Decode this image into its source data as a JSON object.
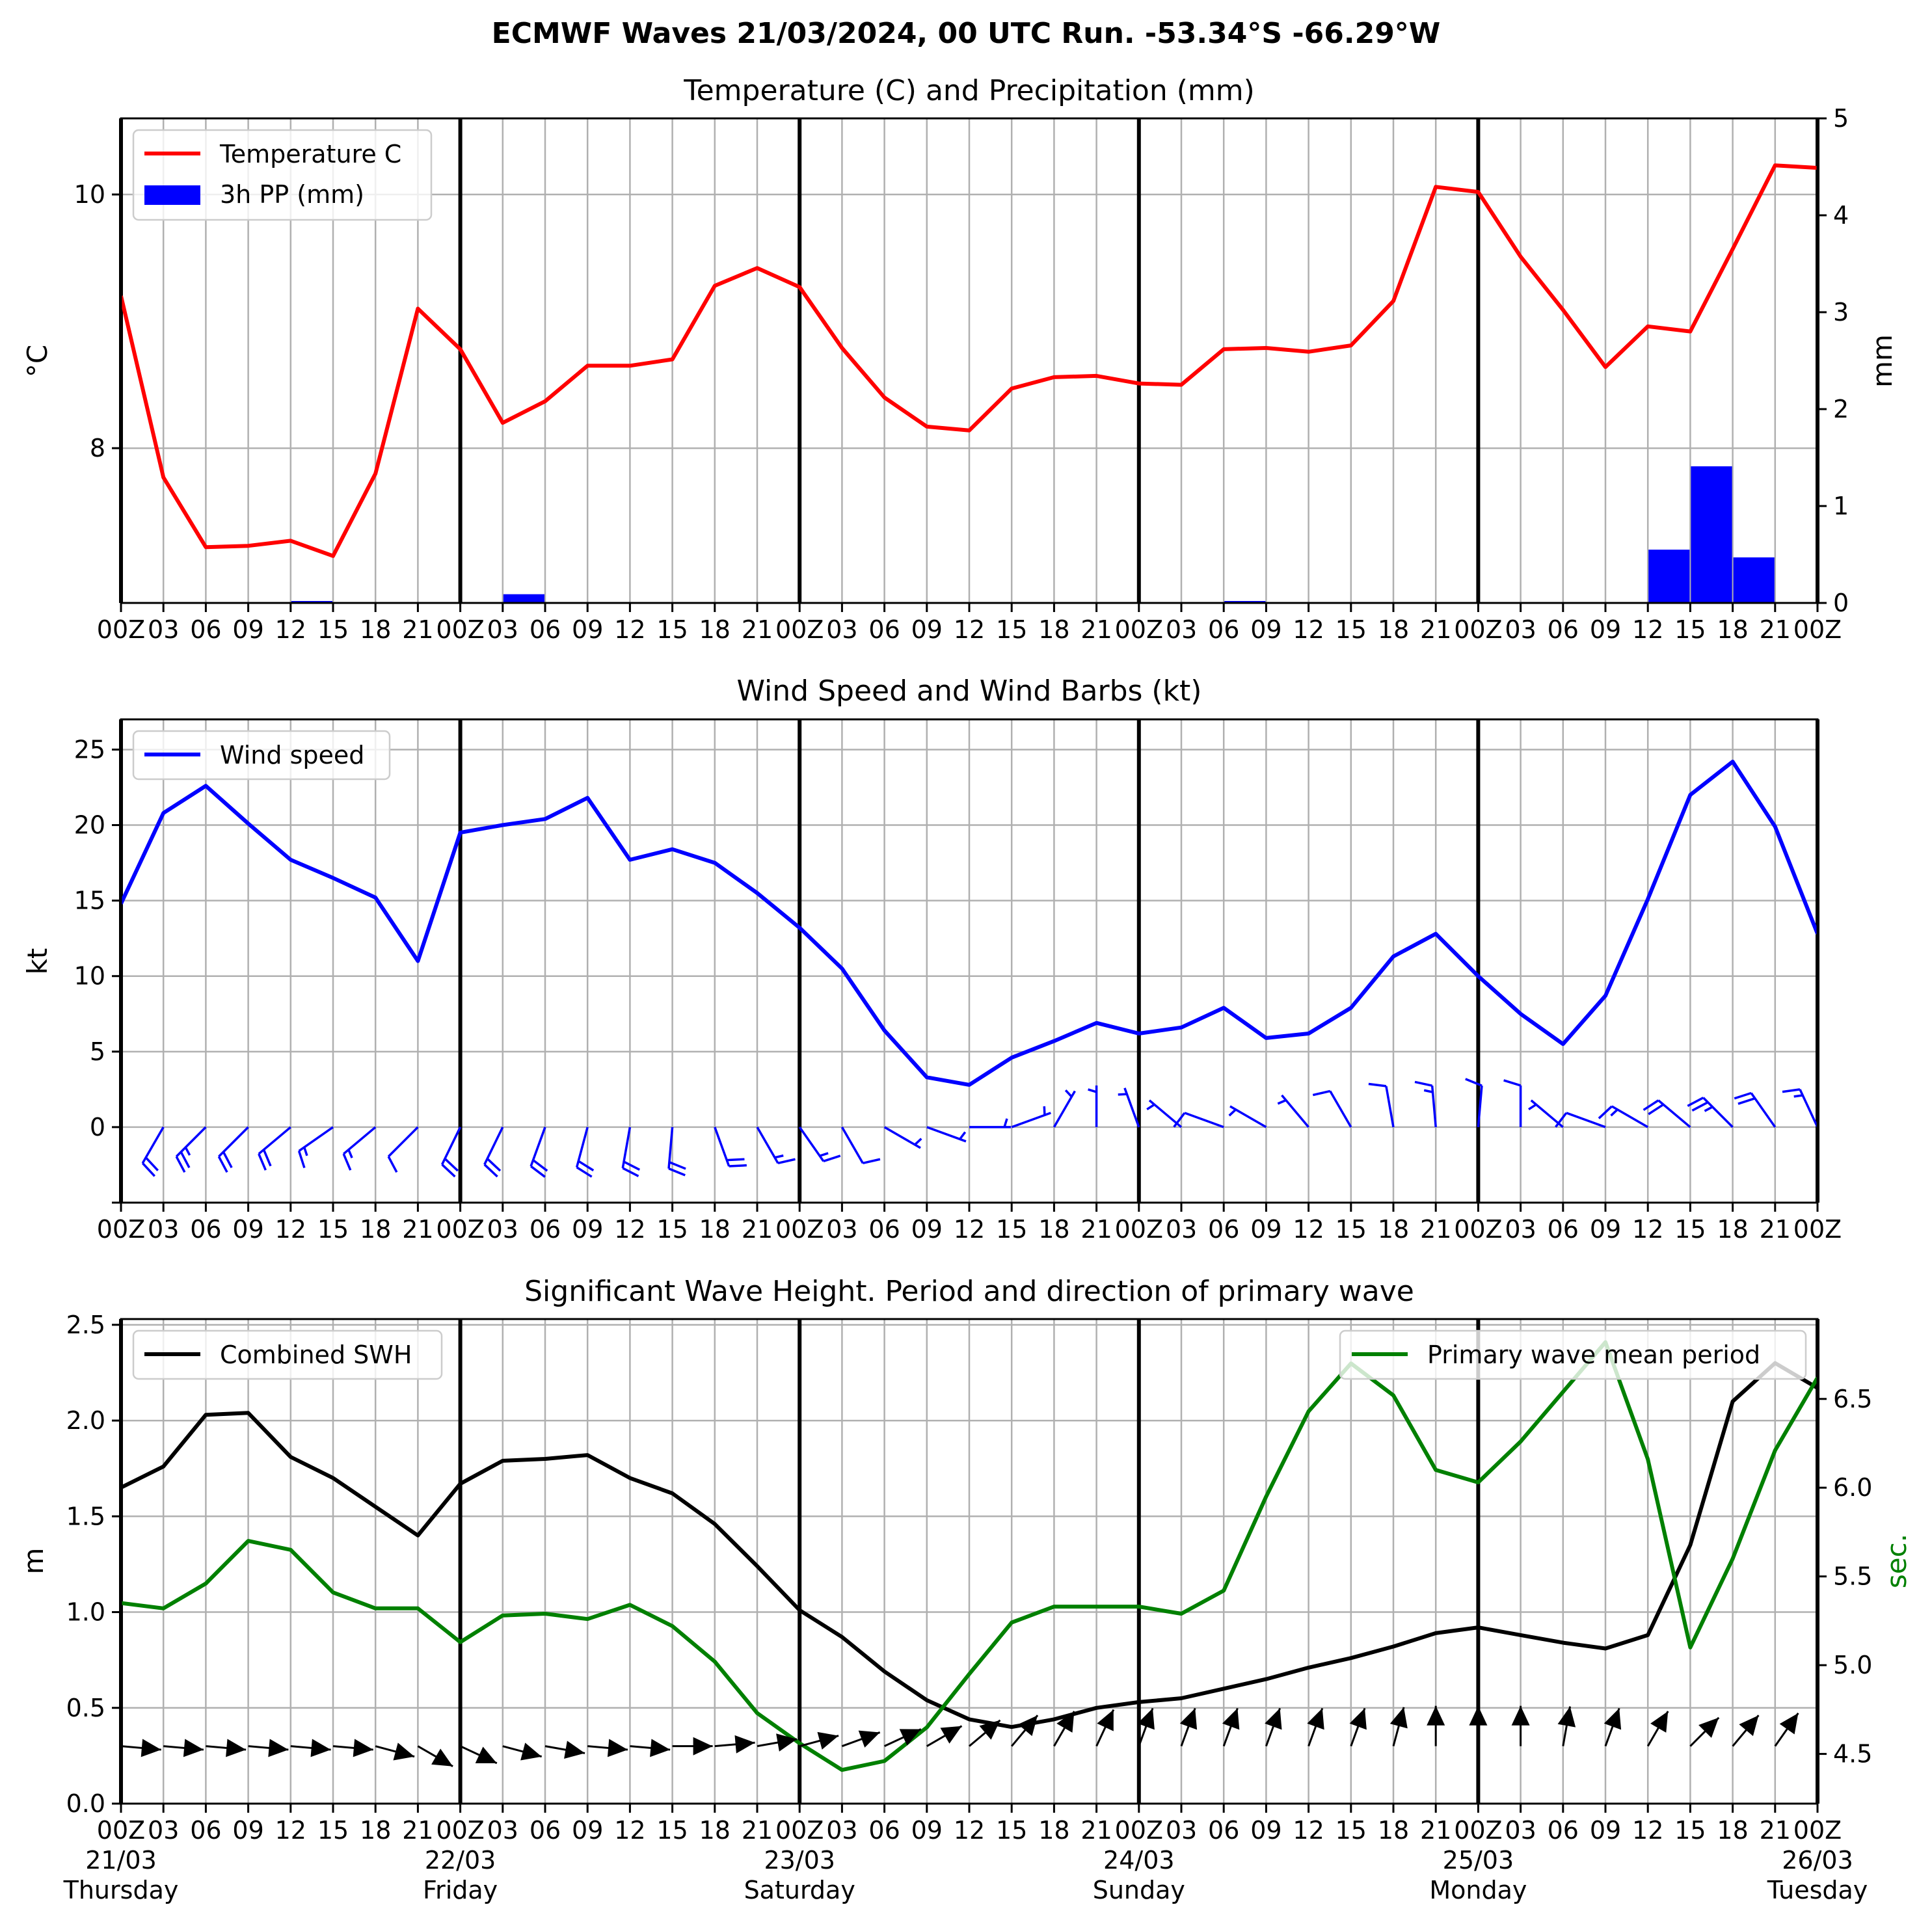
{
  "suptitle": "ECMWF Waves 21/03/2024, 00 UTC Run. -53.34°S -66.29°W",
  "time_tick_labels": [
    "00Z",
    "03",
    "06",
    "09",
    "12",
    "15",
    "18",
    "21",
    "00Z",
    "03",
    "06",
    "09",
    "12",
    "15",
    "18",
    "21",
    "00Z",
    "03",
    "06",
    "09",
    "12",
    "15",
    "18",
    "21",
    "00Z",
    "03",
    "06",
    "09",
    "12",
    "15",
    "18",
    "21",
    "00Z",
    "03",
    "06",
    "09",
    "12",
    "15",
    "18",
    "21",
    "00Z"
  ],
  "date_labels": [
    {
      "date": "21/03",
      "day": "Thursday"
    },
    {
      "date": "22/03",
      "day": "Friday"
    },
    {
      "date": "23/03",
      "day": "Saturday"
    },
    {
      "date": "24/03",
      "day": "Sunday"
    },
    {
      "date": "25/03",
      "day": "Monday"
    },
    {
      "date": "26/03",
      "day": "Tuesday"
    }
  ],
  "chart_data": [
    {
      "type": "line",
      "title": "Temperature (C) and Precipitation (mm)",
      "ylabel": "°C",
      "ylabel_right": "mm",
      "ylim": [
        6.78,
        10.6
      ],
      "ylim_right": [
        0,
        5
      ],
      "yticks": [
        8,
        10
      ],
      "yticks_right": [
        0,
        1,
        2,
        3,
        4,
        5
      ],
      "grid": true,
      "legend_position": "top-left",
      "series": [
        {
          "name": "Temperature C",
          "color": "#ff0000",
          "values": [
            9.2,
            7.77,
            7.22,
            7.23,
            7.27,
            7.15,
            7.8,
            9.1,
            8.78,
            8.2,
            8.37,
            8.65,
            8.65,
            8.7,
            9.28,
            9.42,
            9.27,
            8.79,
            8.4,
            8.17,
            8.14,
            8.47,
            8.56,
            8.57,
            8.51,
            8.5,
            8.78,
            8.79,
            8.76,
            8.81,
            9.16,
            10.06,
            10.02,
            9.51,
            9.09,
            8.64,
            8.96,
            8.92,
            9.57,
            10.23,
            10.21
          ]
        },
        {
          "name": "3h PP (mm)",
          "color": "#0000ff",
          "kind": "bar",
          "values": [
            0,
            0,
            0,
            0,
            0.02,
            0,
            0,
            0,
            0,
            0.09,
            0,
            0,
            0,
            0,
            0,
            0,
            0,
            0,
            0,
            0,
            0,
            0,
            0,
            0,
            0,
            0,
            0.02,
            0,
            0,
            0,
            0,
            0,
            0,
            0,
            0,
            0,
            0.55,
            1.41,
            0.47,
            0
          ]
        }
      ]
    },
    {
      "type": "line",
      "title": "Wind Speed and Wind Barbs (kt)",
      "ylabel": "kt",
      "ylim": [
        -5,
        27
      ],
      "yticks": [
        0,
        5,
        10,
        15,
        20,
        25
      ],
      "grid": true,
      "legend_position": "top-left",
      "series": [
        {
          "name": "Wind speed",
          "color": "#0000ff",
          "values": [
            14.8,
            20.8,
            22.6,
            20.1,
            17.7,
            16.5,
            15.2,
            11.0,
            19.5,
            20.0,
            20.4,
            21.8,
            17.7,
            18.4,
            17.5,
            15.5,
            13.2,
            10.5,
            6.4,
            3.3,
            2.8,
            4.6,
            5.7,
            6.9,
            6.2,
            6.6,
            7.9,
            5.9,
            6.2,
            7.9,
            11.3,
            12.8,
            10.0,
            7.5,
            5.5,
            8.7,
            15.1,
            22.0,
            24.2,
            19.9,
            12.8
          ]
        }
      ],
      "wind_barbs": {
        "color": "#0000ff",
        "direction_to_deg": [
          64,
          60,
          45,
          45,
          40,
          35,
          40,
          45,
          64,
          64,
          70,
          75,
          80,
          85,
          110,
          120,
          125,
          120,
          150,
          160,
          180,
          200,
          240,
          270,
          290,
          320,
          340,
          330,
          310,
          300,
          280,
          275,
          265,
          270,
          320,
          340,
          330,
          320,
          315,
          305,
          295
        ]
      }
    },
    {
      "type": "line",
      "title": "Significant Wave Height. Period and direction of primary wave",
      "ylabel": "m",
      "ylabel_right": "sec.",
      "ylim": [
        0,
        2.53
      ],
      "ylim_right": [
        4.22,
        6.95
      ],
      "yticks": [
        0.0,
        0.5,
        1.0,
        1.5,
        2.0,
        2.5
      ],
      "yticks_right": [
        4.5,
        5.0,
        5.5,
        6.0,
        6.5
      ],
      "grid": true,
      "legend_positions": [
        "top-left",
        "top-right"
      ],
      "series": [
        {
          "name": "Combined SWH",
          "color": "#000000",
          "values": [
            1.65,
            1.76,
            2.03,
            2.04,
            1.81,
            1.7,
            1.55,
            1.4,
            1.67,
            1.79,
            1.8,
            1.82,
            1.7,
            1.62,
            1.46,
            1.24,
            1.01,
            0.87,
            0.69,
            0.54,
            0.44,
            0.4,
            0.44,
            0.5,
            0.53,
            0.55,
            0.6,
            0.65,
            0.71,
            0.76,
            0.82,
            0.89,
            0.92,
            0.88,
            0.84,
            0.81,
            0.88,
            1.35,
            2.1,
            2.3,
            2.17
          ]
        },
        {
          "name": "Primary wave mean period",
          "color": "#008000",
          "axis": "right",
          "values": [
            5.35,
            5.32,
            5.46,
            5.7,
            5.65,
            5.41,
            5.32,
            5.32,
            5.13,
            5.28,
            5.29,
            5.26,
            5.34,
            5.22,
            5.02,
            4.73,
            4.56,
            4.41,
            4.46,
            4.65,
            4.95,
            5.24,
            5.33,
            5.33,
            5.33,
            5.29,
            5.42,
            5.95,
            6.43,
            6.7,
            6.52,
            6.1,
            6.03,
            6.26,
            6.54,
            6.82,
            6.16,
            5.1,
            5.6,
            6.21,
            6.62
          ]
        }
      ],
      "wave_direction_arrows": {
        "color": "#000000",
        "direction_to_deg": [
          85,
          85,
          85,
          85,
          85,
          85,
          75,
          60,
          65,
          75,
          80,
          85,
          85,
          90,
          95,
          100,
          105,
          110,
          115,
          120,
          130,
          140,
          150,
          155,
          160,
          160,
          160,
          160,
          160,
          160,
          165,
          180,
          180,
          180,
          170,
          160,
          150,
          135,
          140,
          145,
          150
        ]
      }
    }
  ]
}
